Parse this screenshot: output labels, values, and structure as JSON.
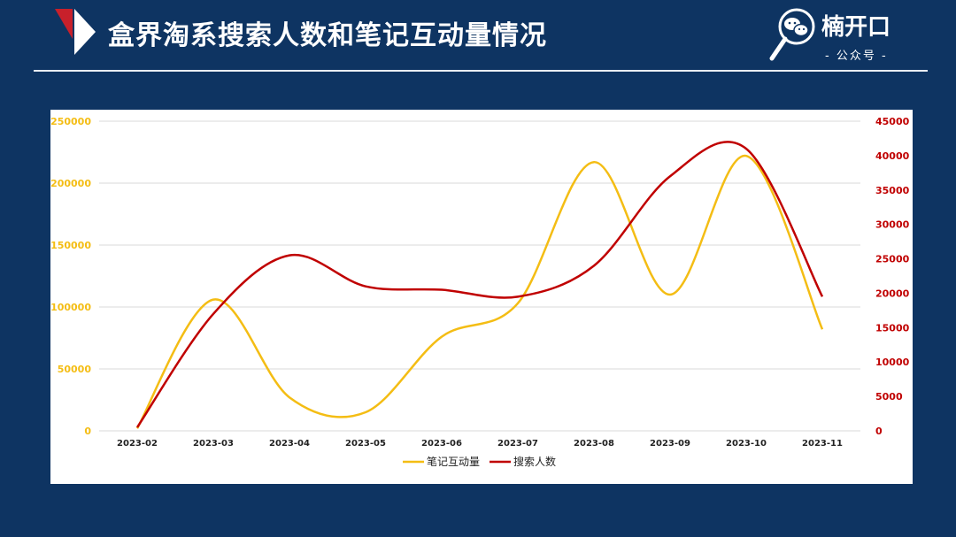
{
  "header": {
    "title": "盒界淘系搜索人数和笔记互动量情况"
  },
  "brand": {
    "name": "楠开口",
    "subtitle": "- 公众号 -",
    "icon": "magnifier-wechat-icon"
  },
  "colors": {
    "background": "#0e3462",
    "series_left": "#f4bd14",
    "series_right": "#c00000",
    "accent_red": "#c8202b"
  },
  "chart_data": {
    "type": "line",
    "smooth": true,
    "categories": [
      "2023-02",
      "2023-03",
      "2023-04",
      "2023-05",
      "2023-06",
      "2023-07",
      "2023-08",
      "2023-09",
      "2023-10",
      "2023-11"
    ],
    "series": [
      {
        "name": "笔记互动量",
        "axis": "left",
        "color": "#f4bd14",
        "values": [
          2000,
          106000,
          27000,
          15000,
          76000,
          103000,
          217000,
          110000,
          222000,
          82000
        ]
      },
      {
        "name": "搜索人数",
        "axis": "right",
        "color": "#c00000",
        "values": [
          500,
          17000,
          25500,
          21000,
          20500,
          19500,
          24000,
          37000,
          41000,
          19500
        ]
      }
    ],
    "y_left": {
      "min": 0,
      "max": 250000,
      "ticks": [
        "0",
        "50000",
        "100000",
        "150000",
        "200000",
        "250000"
      ]
    },
    "y_right": {
      "min": 0,
      "max": 45000,
      "ticks": [
        "0",
        "5000",
        "10000",
        "15000",
        "20000",
        "25000",
        "30000",
        "35000",
        "40000",
        "45000"
      ]
    },
    "grid": true,
    "legend": "bottom-center"
  }
}
